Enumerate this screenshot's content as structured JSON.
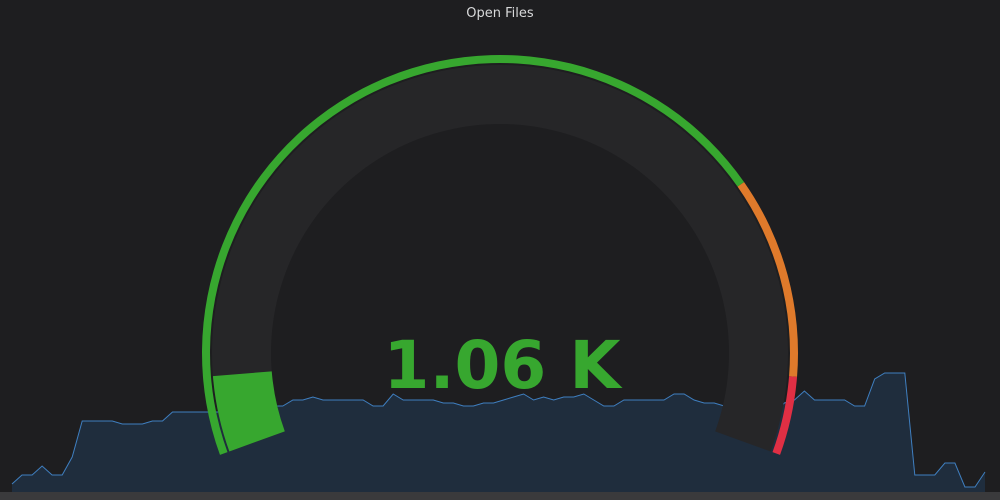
{
  "panel": {
    "title": "Open Files"
  },
  "gauge": {
    "value_text": "1.06 K",
    "value": 1060,
    "fill_fraction": 0.07,
    "thresholds": [
      {
        "color": "#37a72f",
        "from_fraction": 0.0,
        "to_fraction": 0.75
      },
      {
        "color": "#df7a2b",
        "from_fraction": 0.75,
        "to_fraction": 0.93
      },
      {
        "color": "#e02f44",
        "from_fraction": 0.93,
        "to_fraction": 1.0
      }
    ],
    "value_color": "#37a72f",
    "track_color": "#262628"
  },
  "sparkline": {
    "line_color": "#3f7fc0",
    "fill_color": "#1f2d3d",
    "values": [
      2,
      5,
      5,
      8,
      5,
      5,
      11,
      23,
      23,
      23,
      23,
      22,
      22,
      22,
      23,
      23,
      26,
      26,
      26,
      26,
      26,
      26,
      26,
      26,
      28,
      28,
      28,
      28,
      30,
      30,
      31,
      30,
      30,
      30,
      30,
      30,
      28,
      28,
      32,
      30,
      30,
      30,
      30,
      29,
      29,
      28,
      28,
      29,
      29,
      30,
      31,
      32,
      30,
      31,
      30,
      31,
      31,
      32,
      30,
      28,
      28,
      30,
      30,
      30,
      30,
      30,
      32,
      32,
      30,
      29,
      29,
      28,
      28,
      27,
      27,
      26,
      26,
      29,
      30,
      33,
      30,
      30,
      30,
      30,
      28,
      28,
      37,
      39,
      39,
      39,
      5,
      5,
      5,
      9,
      9,
      1,
      1,
      6
    ]
  }
}
